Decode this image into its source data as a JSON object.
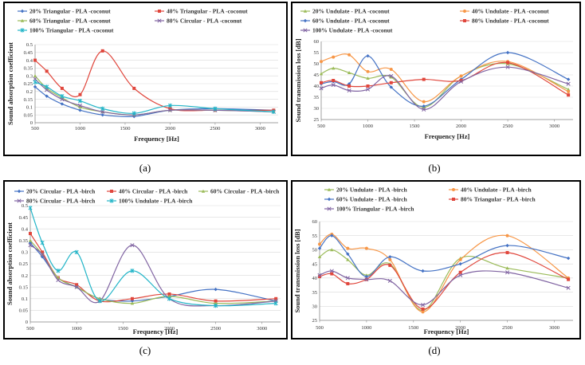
{
  "captions": [
    "(a)",
    "(b)",
    "(c)",
    "(d)"
  ],
  "chart_data": [
    {
      "type": "line",
      "xlabel": "Frequency [Hz]",
      "ylabel": "Sound absorption coefficient",
      "x": [
        500,
        630,
        800,
        1000,
        1250,
        1600,
        2000,
        2500,
        3150
      ],
      "xticks": [
        500,
        1000,
        1500,
        2000,
        2500,
        3000
      ],
      "xlim": [
        500,
        3200
      ],
      "ylim": [
        0,
        0.5
      ],
      "yticks": [
        0,
        0.05,
        0.1,
        0.15,
        0.2,
        0.25,
        0.3,
        0.35,
        0.4,
        0.45,
        0.5
      ],
      "ytick_labels": [
        "0",
        "0.05",
        "0.1",
        "0.15",
        "0.2",
        "0.25",
        "0.3",
        "0.35",
        "0.4",
        "0.45",
        "0.5"
      ],
      "legend_cols": 2,
      "series": [
        {
          "name": "20% Triangular - PLA -coconut",
          "color": "#4472c4",
          "marker": "diamond",
          "values": [
            0.23,
            0.17,
            0.12,
            0.08,
            0.05,
            0.04,
            0.08,
            0.09,
            0.08
          ]
        },
        {
          "name": "40% Triangular - PLA -coconut",
          "color": "#e0463c",
          "marker": "square",
          "values": [
            0.4,
            0.33,
            0.22,
            0.18,
            0.46,
            0.22,
            0.09,
            0.08,
            0.08
          ]
        },
        {
          "name": "60% Triangular - PLA -coconut",
          "color": "#9bbb59",
          "marker": "triangle",
          "values": [
            0.3,
            0.22,
            0.16,
            0.1,
            0.07,
            0.05,
            0.08,
            0.08,
            0.07
          ]
        },
        {
          "name": "80% Circular - PLA -coconut",
          "color": "#8064a2",
          "marker": "x",
          "values": [
            0.28,
            0.21,
            0.15,
            0.11,
            0.07,
            0.05,
            0.08,
            0.08,
            0.07
          ]
        },
        {
          "name": "100% Triangular - PLA -coconut",
          "color": "#23b5c8",
          "marker": "star",
          "values": [
            0.26,
            0.23,
            0.17,
            0.14,
            0.09,
            0.06,
            0.11,
            0.09,
            0.07
          ]
        }
      ]
    },
    {
      "type": "line",
      "xlabel": "Frequency [Hz]",
      "ylabel": "Sound transmission loss [dB]",
      "x": [
        500,
        630,
        800,
        1000,
        1250,
        1600,
        2000,
        2500,
        3150
      ],
      "xticks": [
        500,
        1000,
        1500,
        2000,
        2500,
        3000
      ],
      "xlim": [
        500,
        3200
      ],
      "ylim": [
        25,
        60
      ],
      "yticks": [
        25,
        30,
        35,
        40,
        45,
        50,
        55,
        60
      ],
      "ytick_labels": [
        "25",
        "30",
        "35",
        "40",
        "45",
        "50",
        "55",
        "60"
      ],
      "legend_cols": 2,
      "series": [
        {
          "name": "20% Undulate - PLA -coconut",
          "color": "#9bbb59",
          "marker": "triangle",
          "values": [
            45.5,
            48,
            46,
            43.5,
            44,
            30.5,
            44.5,
            50,
            38.5
          ]
        },
        {
          "name": "40% Undulate - PLA -coconut",
          "color": "#f79646",
          "marker": "circle",
          "values": [
            51,
            53,
            54,
            46.5,
            47.5,
            33,
            44.5,
            51,
            37.5
          ]
        },
        {
          "name": "60% Undulate - PLA -coconut",
          "color": "#4472c4",
          "marker": "diamond",
          "values": [
            41,
            42,
            41,
            53.5,
            39.5,
            31,
            43,
            55,
            43
          ]
        },
        {
          "name": "80% Undulate - PLA -coconut",
          "color": "#e0463c",
          "marker": "square",
          "values": [
            41.5,
            42.5,
            40,
            40,
            41.5,
            43,
            42.5,
            50.5,
            36
          ]
        },
        {
          "name": "100% Undulate - PLA -coconut",
          "color": "#8064a2",
          "marker": "x",
          "values": [
            39,
            40.5,
            38,
            38.5,
            44.5,
            29.5,
            42,
            48.5,
            41
          ]
        }
      ]
    },
    {
      "type": "line",
      "xlabel": "Frequency [Hz]",
      "ylabel": "Sound absorption coefficient",
      "x": [
        500,
        630,
        800,
        1000,
        1250,
        1600,
        2000,
        2500,
        3150
      ],
      "xticks": [
        500,
        1000,
        1500,
        2000,
        2500,
        3000
      ],
      "xlim": [
        500,
        3200
      ],
      "ylim": [
        0,
        0.5
      ],
      "yticks": [
        0,
        0.05,
        0.1,
        0.15,
        0.2,
        0.25,
        0.3,
        0.35,
        0.4,
        0.45,
        0.5
      ],
      "ytick_labels": [
        "0",
        "0.05",
        "0.1",
        "0.15",
        "0.2",
        "0.25",
        "0.3",
        "0.35",
        "0.4",
        "0.45",
        "0.5"
      ],
      "legend_cols": 3,
      "series": [
        {
          "name": "20% Circular - PLA -birch",
          "color": "#4472c4",
          "marker": "diamond",
          "values": [
            0.34,
            0.28,
            0.19,
            0.15,
            0.1,
            0.09,
            0.11,
            0.14,
            0.09
          ]
        },
        {
          "name": "40% Circular - PLA -birch",
          "color": "#e0463c",
          "marker": "square",
          "values": [
            0.38,
            0.3,
            0.19,
            0.16,
            0.09,
            0.1,
            0.12,
            0.09,
            0.1
          ]
        },
        {
          "name": "60% Circular - PLA -birch",
          "color": "#9bbb59",
          "marker": "triangle",
          "values": [
            0.35,
            0.29,
            0.19,
            0.15,
            0.1,
            0.08,
            0.11,
            0.08,
            0.09
          ]
        },
        {
          "name": "80% Circular - PLA -birch",
          "color": "#8064a2",
          "marker": "x",
          "values": [
            0.33,
            0.29,
            0.18,
            0.15,
            0.09,
            0.33,
            0.1,
            0.07,
            0.09
          ]
        },
        {
          "name": "100% Undulate - PLA -birch",
          "color": "#23b5c8",
          "marker": "star",
          "values": [
            0.49,
            0.34,
            0.22,
            0.3,
            0.09,
            0.22,
            0.1,
            0.07,
            0.08
          ]
        }
      ]
    },
    {
      "type": "line",
      "xlabel": "Frequency [Hz]",
      "ylabel": "Sound transmission loss [dB]",
      "x": [
        500,
        630,
        800,
        1000,
        1250,
        1600,
        2000,
        2500,
        3150
      ],
      "xticks": [
        500,
        1000,
        1500,
        2000,
        2500,
        3000
      ],
      "xlim": [
        500,
        3200
      ],
      "ylim": [
        25,
        60
      ],
      "yticks": [
        25,
        30,
        35,
        40,
        45,
        50,
        55,
        60
      ],
      "ytick_labels": [
        "25",
        "30",
        "35",
        "40",
        "45",
        "50",
        "55",
        "60"
      ],
      "legend_cols": 2,
      "series": [
        {
          "name": "20% Undulate - PLA -birch",
          "color": "#9bbb59",
          "marker": "triangle",
          "values": [
            47.5,
            50,
            46.5,
            41,
            45,
            28.5,
            47,
            43.5,
            40
          ]
        },
        {
          "name": "40% Undulate - PLA -birch",
          "color": "#f79646",
          "marker": "circle",
          "values": [
            52,
            55.5,
            50.5,
            50.5,
            46.5,
            28,
            46.5,
            55,
            40
          ]
        },
        {
          "name": "60% Undulate - PLA -birch",
          "color": "#4472c4",
          "marker": "diamond",
          "values": [
            50.5,
            55,
            48.5,
            40.5,
            47.5,
            42.5,
            45,
            51.5,
            47
          ]
        },
        {
          "name": "80% Triangular - PLA -birch",
          "color": "#e0463c",
          "marker": "square",
          "values": [
            40.5,
            41.5,
            38,
            39.5,
            44.5,
            29,
            42,
            49,
            39.5
          ]
        },
        {
          "name": "100% Triangular - PLA -birch",
          "color": "#8064a2",
          "marker": "x",
          "values": [
            41,
            42.5,
            40,
            39.5,
            39,
            30.5,
            41,
            42,
            36.5
          ]
        }
      ]
    }
  ]
}
